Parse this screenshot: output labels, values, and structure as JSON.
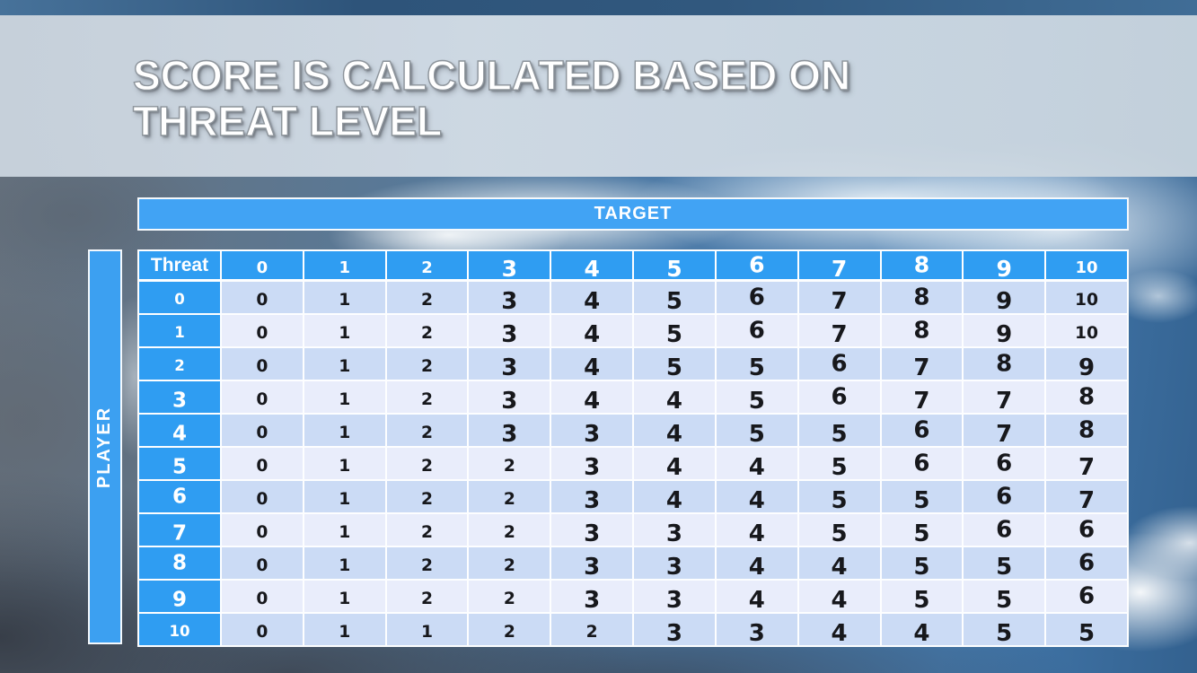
{
  "slide": {
    "title_line1": "SCORE IS CALCULATED BASED ON",
    "title_line2": "THREAT LEVEL"
  },
  "colors": {
    "accent_blue": "#2f9df2",
    "band_dark": "#cbdbf5",
    "band_light": "#e9edfb",
    "banner_gray": "#d0dbe5"
  },
  "chart_data": {
    "type": "table",
    "title": "SCORE IS CALCULATED BASED ON THREAT LEVEL",
    "column_axis_label": "TARGET",
    "row_axis_label": "PLAYER",
    "corner_label": "Threat",
    "columns": [
      "0",
      "1",
      "2",
      "3",
      "4",
      "5",
      "6",
      "7",
      "8",
      "9",
      "10"
    ],
    "rows": [
      {
        "threat": "0",
        "scores": [
          0,
          1,
          2,
          3,
          4,
          5,
          6,
          7,
          8,
          9,
          10
        ]
      },
      {
        "threat": "1",
        "scores": [
          0,
          1,
          2,
          3,
          4,
          5,
          6,
          7,
          8,
          9,
          10
        ]
      },
      {
        "threat": "2",
        "scores": [
          0,
          1,
          2,
          3,
          4,
          5,
          5,
          6,
          7,
          8,
          9
        ]
      },
      {
        "threat": "3",
        "scores": [
          0,
          1,
          2,
          3,
          4,
          4,
          5,
          6,
          7,
          7,
          8
        ]
      },
      {
        "threat": "4",
        "scores": [
          0,
          1,
          2,
          3,
          3,
          4,
          5,
          5,
          6,
          7,
          8
        ]
      },
      {
        "threat": "5",
        "scores": [
          0,
          1,
          2,
          2,
          3,
          4,
          4,
          5,
          6,
          6,
          7
        ]
      },
      {
        "threat": "6",
        "scores": [
          0,
          1,
          2,
          2,
          3,
          4,
          4,
          5,
          5,
          6,
          7
        ]
      },
      {
        "threat": "7",
        "scores": [
          0,
          1,
          2,
          2,
          3,
          3,
          4,
          5,
          5,
          6,
          6
        ]
      },
      {
        "threat": "8",
        "scores": [
          0,
          1,
          2,
          2,
          3,
          3,
          4,
          4,
          5,
          5,
          6
        ]
      },
      {
        "threat": "9",
        "scores": [
          0,
          1,
          2,
          2,
          3,
          3,
          4,
          4,
          5,
          5,
          6
        ]
      },
      {
        "threat": "10",
        "scores": [
          0,
          1,
          1,
          2,
          2,
          3,
          3,
          4,
          4,
          5,
          5
        ]
      }
    ]
  }
}
